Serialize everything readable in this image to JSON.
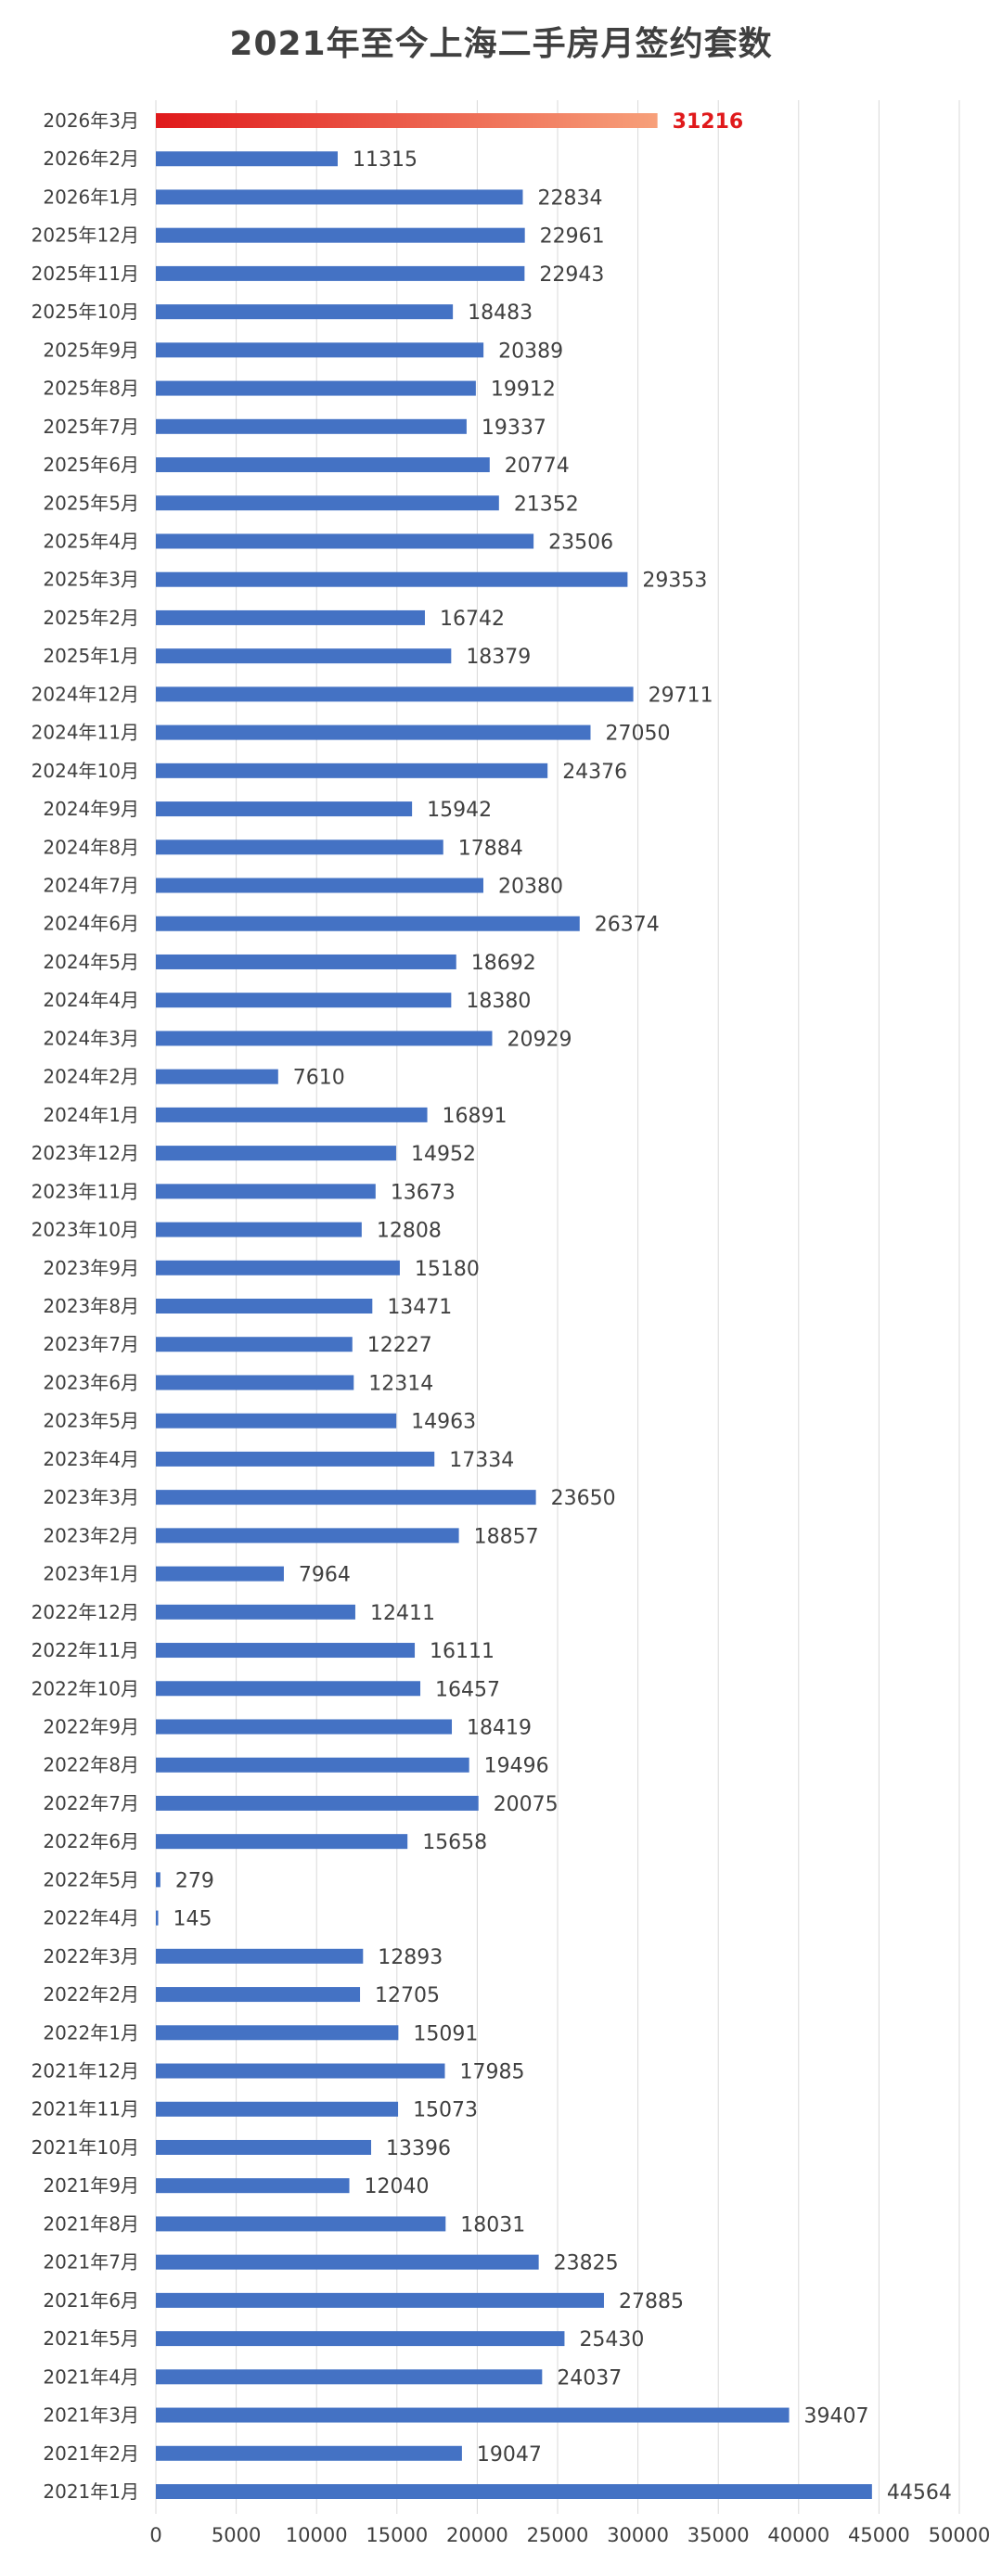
{
  "chart_data": {
    "type": "bar",
    "orientation": "horizontal",
    "title": "2021年至今上海二手房月签约套数",
    "categories": [
      "2026年3月",
      "2026年2月",
      "2026年1月",
      "2025年12月",
      "2025年11月",
      "2025年10月",
      "2025年9月",
      "2025年8月",
      "2025年7月",
      "2025年6月",
      "2025年5月",
      "2025年4月",
      "2025年3月",
      "2025年2月",
      "2025年1月",
      "2024年12月",
      "2024年11月",
      "2024年10月",
      "2024年9月",
      "2024年8月",
      "2024年7月",
      "2024年6月",
      "2024年5月",
      "2024年4月",
      "2024年3月",
      "2024年2月",
      "2024年1月",
      "2023年12月",
      "2023年11月",
      "2023年10月",
      "2023年9月",
      "2023年8月",
      "2023年7月",
      "2023年6月",
      "2023年5月",
      "2023年4月",
      "2023年3月",
      "2023年2月",
      "2023年1月",
      "2022年12月",
      "2022年11月",
      "2022年10月",
      "2022年9月",
      "2022年8月",
      "2022年7月",
      "2022年6月",
      "2022年5月",
      "2022年4月",
      "2022年3月",
      "2022年2月",
      "2022年1月",
      "2021年12月",
      "2021年11月",
      "2021年10月",
      "2021年9月",
      "2021年8月",
      "2021年7月",
      "2021年6月",
      "2021年5月",
      "2021年4月",
      "2021年3月",
      "2021年2月",
      "2021年1月"
    ],
    "values": [
      31216,
      11315,
      22834,
      22961,
      22943,
      18483,
      20389,
      19912,
      19337,
      20774,
      21352,
      23506,
      29353,
      16742,
      18379,
      29711,
      27050,
      24376,
      15942,
      17884,
      20380,
      26374,
      18692,
      18380,
      20929,
      7610,
      16891,
      14952,
      13673,
      12808,
      15180,
      13471,
      12227,
      12314,
      14963,
      17334,
      23650,
      18857,
      7964,
      12411,
      16111,
      16457,
      18419,
      19496,
      20075,
      15658,
      279,
      145,
      12893,
      12705,
      15091,
      17985,
      15073,
      13396,
      12040,
      18031,
      23825,
      27885,
      25430,
      24037,
      39407,
      19047,
      44564
    ],
    "highlight_category": "2026年3月",
    "xlim": [
      0,
      50000
    ],
    "x_ticks": [
      0,
      5000,
      10000,
      15000,
      20000,
      25000,
      30000,
      35000,
      40000,
      45000,
      50000
    ],
    "grid": "vertical",
    "legend": "none",
    "data_labels": true,
    "xlabel": "",
    "ylabel": ""
  },
  "colors": {
    "bar": "#4472c4",
    "highlight_start": "#e0191b",
    "highlight_end": "#f7a07a",
    "highlight_label": "#e0191b",
    "grid": "#d9d9d9",
    "text": "#404040",
    "background": "#ffffff"
  }
}
